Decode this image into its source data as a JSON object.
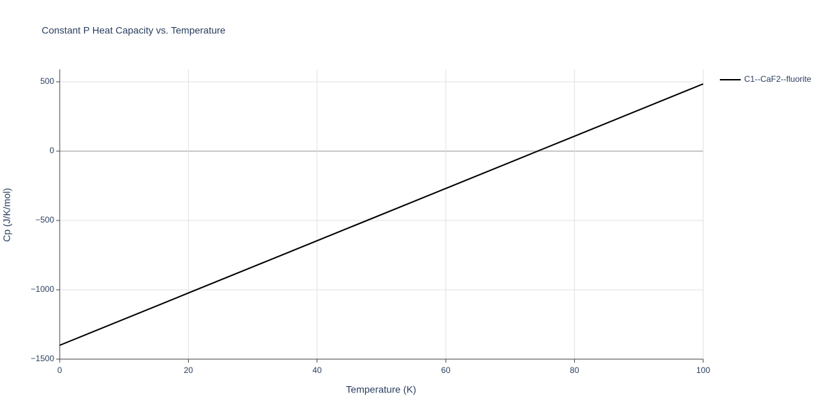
{
  "chart_data": {
    "type": "line",
    "title": "Constant P Heat Capacity vs. Temperature",
    "x_label": "Temperature (K)",
    "y_label": "Cp (J/K/mol)",
    "x": [
      0,
      20,
      40,
      60,
      74,
      80,
      100
    ],
    "series": [
      {
        "name": "C1--CaF2--fluorite",
        "color": "#000000",
        "values": [
          -1400,
          -1023,
          -646,
          -269,
          -5,
          108,
          485
        ]
      }
    ],
    "xlim": [
      0,
      100
    ],
    "xticks": [
      0,
      20,
      40,
      60,
      80,
      100
    ],
    "ylim": [
      -1500,
      590
    ],
    "yticks": [
      {
        "value": -1500,
        "label": "−1500"
      },
      {
        "value": -1000,
        "label": "−1000"
      },
      {
        "value": -500,
        "label": "−500"
      },
      0,
      500
    ],
    "grid": true,
    "legend": "right"
  }
}
